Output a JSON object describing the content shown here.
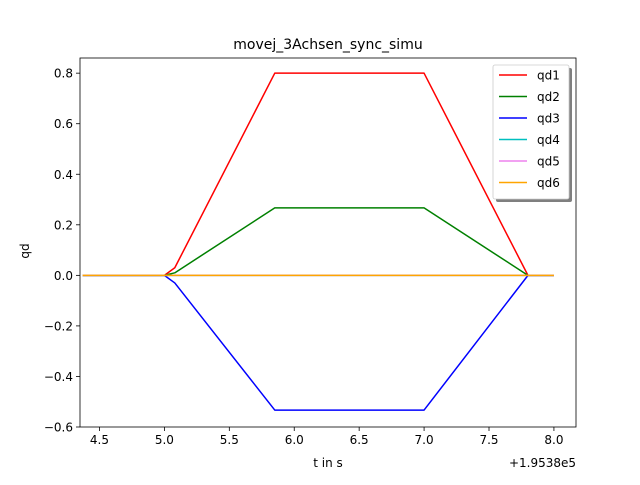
{
  "chart_data": {
    "type": "line",
    "title": "movej_3Achsen_sync_simu",
    "xlabel": "t in s",
    "ylabel": "qd",
    "x_offset_label": "+1.9538e5",
    "xlim": [
      4.35,
      8.17
    ],
    "ylim": [
      -0.6,
      0.86
    ],
    "xticks": [
      "4.5",
      "5.0",
      "5.5",
      "6.0",
      "6.5",
      "7.0",
      "7.5",
      "8.0"
    ],
    "yticks": [
      "−0.6",
      "−0.4",
      "−0.2",
      "0.0",
      "0.2",
      "0.4",
      "0.6",
      "0.8"
    ],
    "grid": false,
    "legend_position": "top-right",
    "series": [
      {
        "name": "qd1",
        "color": "#ff0000",
        "x": [
          4.37,
          5.0,
          5.08,
          5.85,
          7.0,
          7.8,
          8.0
        ],
        "y": [
          0.0,
          0.0,
          0.03,
          0.8,
          0.8,
          0.0,
          0.0
        ]
      },
      {
        "name": "qd2",
        "color": "#008000",
        "x": [
          4.37,
          5.0,
          5.08,
          5.85,
          7.0,
          7.8,
          8.0
        ],
        "y": [
          0.0,
          0.0,
          0.01,
          0.267,
          0.267,
          0.0,
          0.0
        ]
      },
      {
        "name": "qd3",
        "color": "#0000ff",
        "x": [
          4.37,
          5.0,
          5.08,
          5.85,
          7.0,
          7.8,
          8.0
        ],
        "y": [
          0.0,
          0.0,
          -0.03,
          -0.533,
          -0.533,
          0.0,
          0.0
        ]
      },
      {
        "name": "qd4",
        "color": "#00bfbf",
        "x": [
          4.37,
          8.0
        ],
        "y": [
          0.0,
          0.0
        ]
      },
      {
        "name": "qd5",
        "color": "#ee82ee",
        "x": [
          4.37,
          8.0
        ],
        "y": [
          0.0,
          0.0
        ]
      },
      {
        "name": "qd6",
        "color": "#ffa500",
        "x": [
          4.37,
          8.0
        ],
        "y": [
          0.0,
          0.0
        ]
      }
    ]
  }
}
